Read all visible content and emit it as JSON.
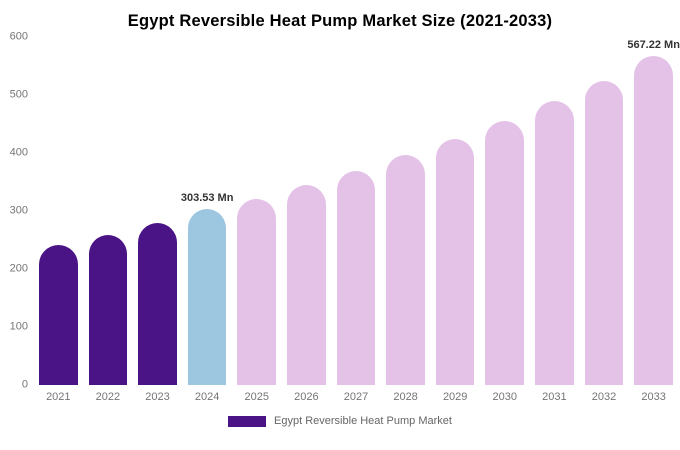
{
  "title": "Egypt Reversible Heat Pump Market Size (2021-2033)",
  "colors": {
    "past": "#4a1486",
    "current": "#9dc6e0",
    "forecast": "#e4c2e8"
  },
  "legend": {
    "label": "Egypt Reversible Heat Pump Market",
    "color": "#4a1486"
  },
  "chart_data": {
    "type": "bar",
    "title": "Egypt Reversible Heat Pump Market Size (2021-2033)",
    "categories": [
      "2021",
      "2022",
      "2023",
      "2024",
      "2025",
      "2026",
      "2027",
      "2028",
      "2029",
      "2030",
      "2031",
      "2032",
      "2033"
    ],
    "values": [
      241,
      259,
      279,
      303.53,
      321,
      344,
      369,
      396,
      425,
      456,
      489,
      525,
      567.22
    ],
    "unit": "Mn",
    "bar_roles": [
      "past",
      "past",
      "past",
      "current",
      "forecast",
      "forecast",
      "forecast",
      "forecast",
      "forecast",
      "forecast",
      "forecast",
      "forecast",
      "forecast"
    ],
    "annotations": [
      {
        "category": "2024",
        "text": "303.53 Mn"
      },
      {
        "category": "2033",
        "text": "567.22 Mn"
      }
    ],
    "ylabel": "",
    "xlabel": "",
    "ylim": [
      0,
      600
    ],
    "yticks": [
      0,
      100,
      200,
      300,
      400,
      500,
      600
    ],
    "grid": false,
    "legend_position": "bottom"
  }
}
